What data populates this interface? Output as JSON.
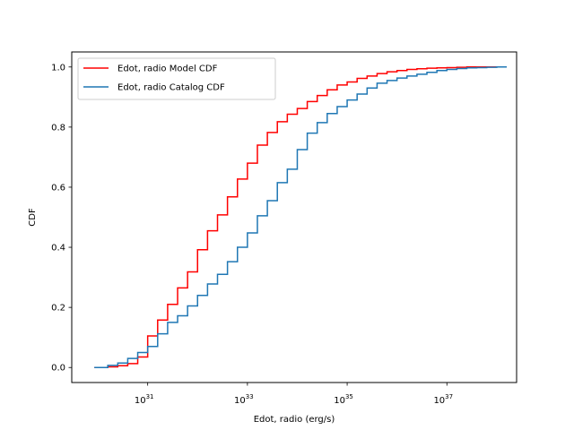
{
  "chart_data": {
    "type": "line",
    "title": "",
    "xlabel": "Edot, radio (erg/s)",
    "ylabel": "CDF",
    "x_scale": "log",
    "xlim": [
      3e+29,
      2.5e+38
    ],
    "ylim": [
      -0.05,
      1.05
    ],
    "x_ticks": [
      {
        "value": 1e+31,
        "base": "10",
        "exp": "31"
      },
      {
        "value": 1e+33,
        "base": "10",
        "exp": "33"
      },
      {
        "value": 1e+35,
        "base": "10",
        "exp": "35"
      },
      {
        "value": 1e+37,
        "base": "10",
        "exp": "37"
      }
    ],
    "y_ticks": [
      {
        "value": 0.0,
        "label": "0.0"
      },
      {
        "value": 0.2,
        "label": "0.2"
      },
      {
        "value": 0.4,
        "label": "0.4"
      },
      {
        "value": 0.6,
        "label": "0.6"
      },
      {
        "value": 0.8,
        "label": "0.8"
      },
      {
        "value": 1.0,
        "label": "1.0"
      }
    ],
    "grid": false,
    "legend_position": "top-left",
    "series": [
      {
        "name": "Edot, radio Model CDF",
        "color": "#ff0000",
        "step": "post",
        "log_x_edges": [
          29.93,
          30.2,
          30.4,
          30.6,
          30.8,
          31.0,
          31.2,
          31.4,
          31.6,
          31.8,
          32.0,
          32.2,
          32.4,
          32.6,
          32.8,
          33.0,
          33.2,
          33.4,
          33.6,
          33.8,
          34.0,
          34.2,
          34.4,
          34.6,
          34.8,
          35.0,
          35.2,
          35.4,
          35.6,
          35.8,
          36.0,
          36.2,
          36.4,
          36.6,
          36.8,
          37.0,
          37.2,
          37.4,
          37.6,
          37.8,
          38.0,
          38.05
        ],
        "y": [
          0.0,
          0.002,
          0.006,
          0.013,
          0.035,
          0.105,
          0.158,
          0.21,
          0.265,
          0.318,
          0.392,
          0.455,
          0.508,
          0.568,
          0.627,
          0.68,
          0.74,
          0.782,
          0.818,
          0.843,
          0.862,
          0.885,
          0.905,
          0.924,
          0.94,
          0.95,
          0.962,
          0.97,
          0.978,
          0.984,
          0.988,
          0.992,
          0.994,
          0.996,
          0.997,
          0.998,
          0.999,
          1.0,
          1.0,
          1.0,
          1.0
        ]
      },
      {
        "name": "Edot, radio Catalog CDF",
        "color": "#1f77b4",
        "step": "post",
        "log_x_edges": [
          29.93,
          30.2,
          30.4,
          30.6,
          30.8,
          31.0,
          31.2,
          31.4,
          31.6,
          31.8,
          32.0,
          32.2,
          32.4,
          32.6,
          32.8,
          33.0,
          33.2,
          33.4,
          33.6,
          33.8,
          34.0,
          34.2,
          34.4,
          34.6,
          34.8,
          35.0,
          35.2,
          35.4,
          35.6,
          35.8,
          36.0,
          36.2,
          36.4,
          36.6,
          36.8,
          37.0,
          37.2,
          37.4,
          37.6,
          37.8,
          38.0,
          38.2
        ],
        "y": [
          0.0,
          0.007,
          0.015,
          0.03,
          0.05,
          0.07,
          0.112,
          0.15,
          0.172,
          0.205,
          0.24,
          0.278,
          0.31,
          0.352,
          0.4,
          0.448,
          0.505,
          0.555,
          0.615,
          0.66,
          0.725,
          0.78,
          0.815,
          0.845,
          0.868,
          0.89,
          0.91,
          0.93,
          0.946,
          0.955,
          0.963,
          0.97,
          0.976,
          0.982,
          0.988,
          0.992,
          0.995,
          0.997,
          0.998,
          0.999,
          1.0
        ]
      }
    ]
  }
}
